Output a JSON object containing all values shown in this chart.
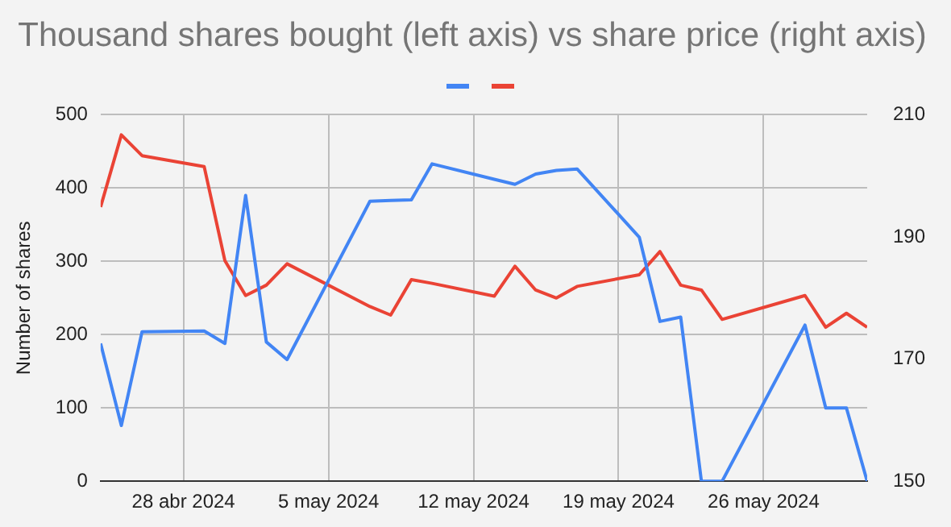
{
  "chart_data": {
    "type": "line",
    "title": "Thousand shares bought (left axis) vs share price (right axis)",
    "ylabel": "Number of shares",
    "x": [
      "2024-04-24",
      "2024-04-25",
      "2024-04-26",
      "2024-04-29",
      "2024-04-30",
      "2024-05-01",
      "2024-05-02",
      "2024-05-03",
      "2024-05-07",
      "2024-05-08",
      "2024-05-09",
      "2024-05-10",
      "2024-05-13",
      "2024-05-14",
      "2024-05-15",
      "2024-05-16",
      "2024-05-17",
      "2024-05-20",
      "2024-05-21",
      "2024-05-22",
      "2024-05-23",
      "2024-05-24",
      "2024-05-28",
      "2024-05-29",
      "2024-05-30",
      "2024-05-31"
    ],
    "series": [
      {
        "color": "#4285f4",
        "values": [
          188,
          76,
          204,
          205,
          188,
          390,
          190,
          166,
          382,
          383,
          384,
          433,
          412,
          405,
          419,
          424,
          426,
          333,
          218,
          224,
          0,
          0,
          213,
          100,
          100,
          0
        ]
      },
      {
        "color": "#ea4335",
        "axis": "y2",
        "values": [
          194.9,
          206.7,
          203.3,
          201.5,
          186.1,
          180.4,
          182.1,
          185.6,
          178.6,
          177.2,
          183.0,
          182.4,
          180.3,
          185.2,
          181.3,
          180.0,
          181.9,
          183.8,
          187.6,
          182.1,
          181.3,
          176.5,
          180.4,
          175.2,
          177.5,
          175.2
        ]
      }
    ],
    "xlim": [
      "2024-04-24",
      "2024-05-31"
    ],
    "xticks": [
      {
        "value": "2024-04-28",
        "label": "28 abr 2024"
      },
      {
        "value": "2024-05-05",
        "label": "5 may 2024"
      },
      {
        "value": "2024-05-12",
        "label": "12 may 2024"
      },
      {
        "value": "2024-05-19",
        "label": "19 may 2024"
      },
      {
        "value": "2024-05-26",
        "label": "26 may 2024"
      }
    ],
    "ylim": [
      0,
      500
    ],
    "yticks": [
      0,
      100,
      200,
      300,
      400,
      500
    ],
    "y2lim": [
      150,
      210
    ],
    "y2ticks": [
      150,
      170,
      190,
      210
    ],
    "grid": true,
    "marker": "none",
    "line_style": "solid"
  }
}
